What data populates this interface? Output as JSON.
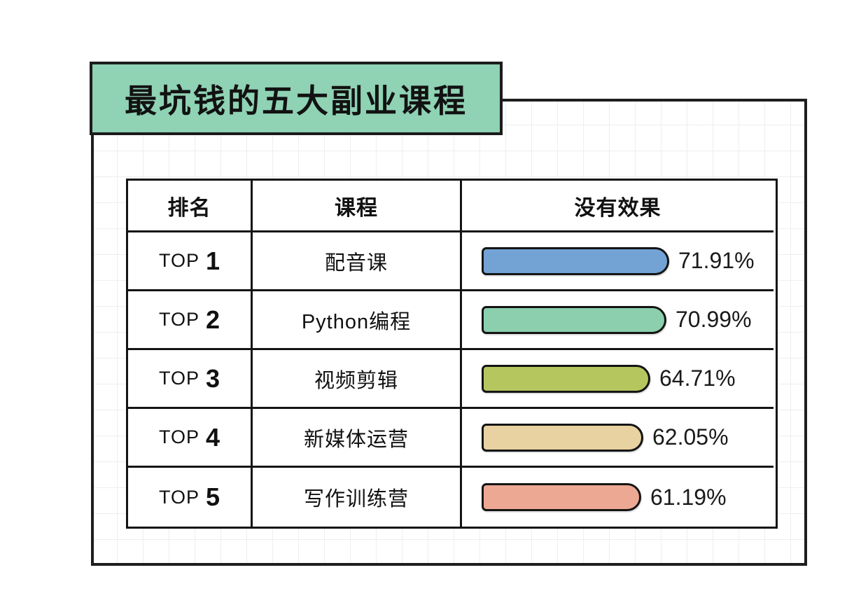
{
  "title": "最坑钱的五大副业课程",
  "table": {
    "headers": [
      "排名",
      "课程",
      "没有效果"
    ],
    "rows": [
      {
        "rank_prefix": "TOP",
        "rank_num": "1",
        "course": "配音课",
        "value": 71.91,
        "label": "71.91%",
        "color": "#72a3d4"
      },
      {
        "rank_prefix": "TOP",
        "rank_num": "2",
        "course": "Python编程",
        "value": 70.99,
        "label": "70.99%",
        "color": "#8bcfae"
      },
      {
        "rank_prefix": "TOP",
        "rank_num": "3",
        "course": "视频剪辑",
        "value": 64.71,
        "label": "64.71%",
        "color": "#b5c65f"
      },
      {
        "rank_prefix": "TOP",
        "rank_num": "4",
        "course": "新媒体运营",
        "value": 62.05,
        "label": "62.05%",
        "color": "#e9d2a2"
      },
      {
        "rank_prefix": "TOP",
        "rank_num": "5",
        "course": "写作训练营",
        "value": 61.19,
        "label": "61.19%",
        "color": "#eca893"
      }
    ]
  },
  "colors": {
    "banner_green": "#8fd2b4",
    "border_black": "#1b1b1b",
    "grid_line": "#f0eded"
  },
  "chart_data": {
    "type": "bar",
    "orientation": "horizontal",
    "title": "最坑钱的五大副业课程",
    "columns": [
      "排名",
      "课程",
      "没有效果"
    ],
    "categories": [
      "配音课",
      "Python编程",
      "视频剪辑",
      "新媒体运营",
      "写作训练营"
    ],
    "ranks": [
      "TOP 1",
      "TOP 2",
      "TOP 3",
      "TOP 4",
      "TOP 5"
    ],
    "values": [
      71.91,
      70.99,
      64.71,
      62.05,
      61.19
    ],
    "value_labels": [
      "71.91%",
      "70.99%",
      "64.71%",
      "62.05%",
      "61.19%"
    ],
    "bar_colors": [
      "#72a3d4",
      "#8bcfae",
      "#b5c65f",
      "#e9d2a2",
      "#eca893"
    ],
    "unit": "%",
    "value_range": [
      0,
      100
    ],
    "axis_shown": false,
    "legend": null
  }
}
